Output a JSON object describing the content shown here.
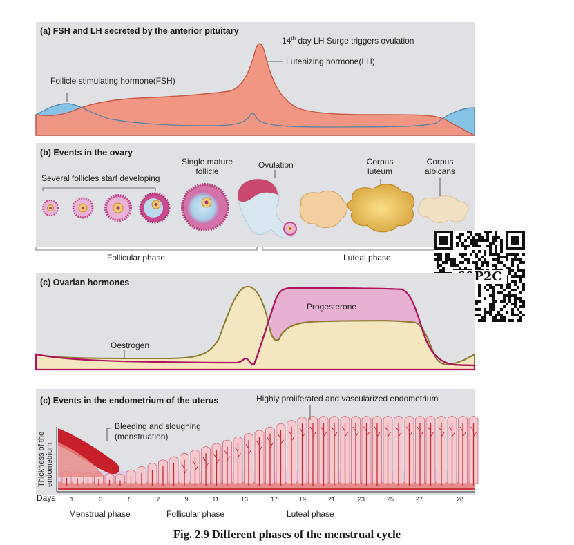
{
  "panel_a": {
    "title": "(a) FSH and LH secreted by the anterior pituitary",
    "lh_surge_prefix": "14",
    "lh_surge_sup": "th",
    "lh_surge_rest": " day LH Surge triggers ovulation",
    "lh_label": "Lutenizing hormone(LH)",
    "fsh_label": "Follicle stimulating hormone(FSH)",
    "colors": {
      "fsh": "#86c3e6",
      "lh": "#f4937f"
    }
  },
  "panel_b": {
    "title": "(b) Events in the ovary",
    "several": "Several follicles start developing",
    "single_line1": "Single mature",
    "single_line2": "follicle",
    "ovulation": "Ovulation",
    "corpus_luteum_1": "Corpus",
    "corpus_luteum_2": "luteum",
    "corpus_albicans_1": "Corpus",
    "corpus_albicans_2": "albicans",
    "follicular_phase": "Follicular phase",
    "luteal_phase": "Luteal phase"
  },
  "qr": {
    "code": "60P2C"
  },
  "panel_c": {
    "title": "(c) Ovarian hormones",
    "progesterone": "Progesterone",
    "oestrogen": "Oestrogen",
    "colors": {
      "oestrogen": "#f4e7bf",
      "progesterone": "#e8aed0",
      "oestrogen_line": "#8a7a2e",
      "progesterone_line": "#b0135e"
    }
  },
  "panel_d": {
    "title": "(c) Events in the endometrium of the uterus",
    "highly": "Highly proliferated and vascularized endometrium",
    "bleeding_1": "Bleeding and sloughing",
    "bleeding_2": "(menstruation)",
    "thickness_1": "Thickness of the",
    "thickness_2": "endometrium",
    "days_label": "Days",
    "days": [
      "1",
      "3",
      "5",
      "7",
      "9",
      "11",
      "13",
      "17",
      "19",
      "21",
      "23",
      "25",
      "27",
      "28"
    ],
    "menstrual_phase": "Menstrual phase",
    "follicular_phase": "Follicular phase",
    "luteal_phase": "Luteal phase"
  },
  "caption": "Fig. 2.9 Different phases of the menstrual cycle"
}
